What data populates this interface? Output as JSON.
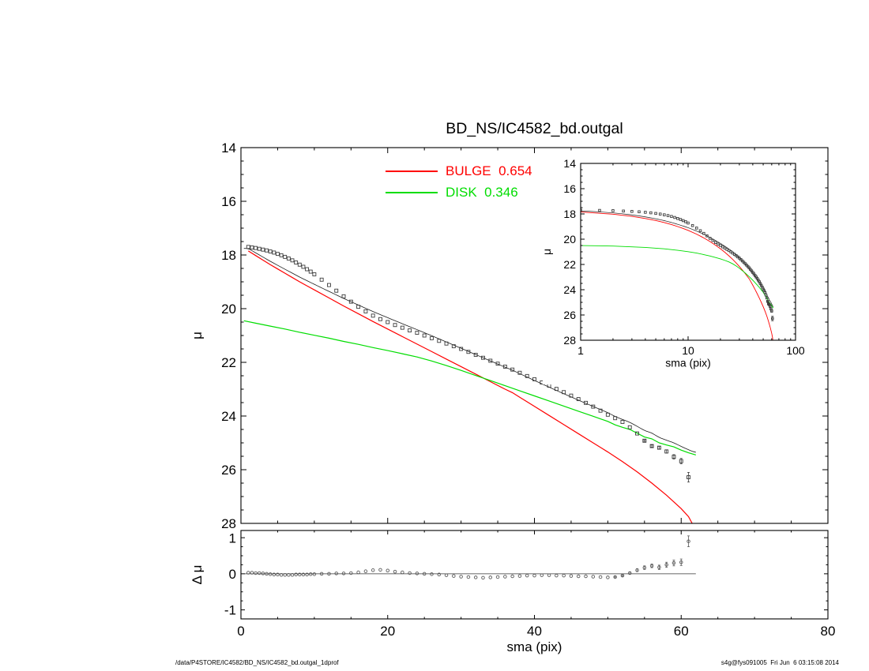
{
  "title": "BD_NS/IC4582_bd.outgal",
  "legend": [
    {
      "label": "BULGE  0.654",
      "color": "#ff0000"
    },
    {
      "label": "DISK  0.346",
      "color": "#00dd00"
    }
  ],
  "footer": {
    "left": "/data/P4STORE/IC4582/BD_NS/IC4582_bd.outgal_1dprof",
    "right": "s4g@fys091005  Fri Jun  6 03:15:08 2014"
  },
  "colors": {
    "bulge": "#ff0000",
    "disk": "#00dd00",
    "data": "#3c3c3c",
    "model": "#1c1c1c",
    "residual": "#5a5a5a",
    "axis": "#000000"
  },
  "chart_data": [
    {
      "id": "main",
      "type": "line",
      "y_down": true,
      "show_model_total": true,
      "xlim": [
        0,
        80
      ],
      "ylim": [
        14,
        28
      ],
      "xticks": [
        0,
        20,
        40,
        60,
        80
      ],
      "yticks": [
        14,
        16,
        18,
        20,
        22,
        24,
        26,
        28
      ],
      "show_x_tick_labels": false,
      "xlabel": "",
      "ylabel": "μ",
      "series": [
        {
          "name": "observed",
          "kind": "scatter",
          "marker": "square",
          "color": "#3c3c3c",
          "x": [
            1,
            1.5,
            2,
            2.5,
            3,
            3.5,
            4,
            4.5,
            5,
            5.5,
            6,
            6.5,
            7,
            7.5,
            8,
            8.5,
            9,
            9.5,
            10,
            11,
            12,
            13,
            14,
            15,
            16,
            17,
            18,
            19,
            20,
            21,
            22,
            23,
            24,
            25,
            26,
            27,
            28,
            29,
            30,
            31,
            32,
            33,
            34,
            35,
            36,
            37,
            38,
            39,
            40,
            41,
            42,
            43,
            44,
            45,
            46,
            47,
            48,
            49,
            50,
            51,
            52,
            53,
            54,
            55,
            56,
            57,
            58,
            59,
            60,
            61
          ],
          "y": [
            17.7,
            17.72,
            17.74,
            17.77,
            17.8,
            17.83,
            17.87,
            17.91,
            17.96,
            18.01,
            18.07,
            18.13,
            18.2,
            18.28,
            18.36,
            18.44,
            18.53,
            18.62,
            18.72,
            18.92,
            19.12,
            19.33,
            19.54,
            19.74,
            19.93,
            20.1,
            20.26,
            20.39,
            20.5,
            20.61,
            20.71,
            20.81,
            20.9,
            21.0,
            21.1,
            21.2,
            21.3,
            21.4,
            21.5,
            21.61,
            21.72,
            21.83,
            21.94,
            22.05,
            22.16,
            22.27,
            22.39,
            22.51,
            22.63,
            22.75,
            22.87,
            22.99,
            23.11,
            23.24,
            23.37,
            23.51,
            23.65,
            23.8,
            23.95,
            24.08,
            24.22,
            24.42,
            24.65,
            24.92,
            25.12,
            25.18,
            25.32,
            25.52,
            25.68,
            26.28
          ],
          "err": [
            0,
            0,
            0,
            0,
            0,
            0,
            0,
            0,
            0,
            0,
            0,
            0,
            0,
            0,
            0,
            0,
            0,
            0,
            0,
            0,
            0,
            0,
            0,
            0,
            0,
            0,
            0,
            0,
            0,
            0,
            0,
            0,
            0,
            0,
            0,
            0,
            0,
            0,
            0,
            0,
            0,
            0,
            0,
            0,
            0,
            0,
            0,
            0,
            0,
            0,
            0,
            0,
            0,
            0,
            0,
            0,
            0,
            0,
            0,
            0,
            0,
            0,
            0,
            0.03,
            0.04,
            0.05,
            0.06,
            0.08,
            0.1,
            0.18
          ]
        },
        {
          "name": "bulge",
          "kind": "line",
          "color": "#ff0000",
          "x": [
            1,
            2,
            3,
            4,
            5,
            6,
            7,
            8,
            9,
            10,
            12,
            14,
            16,
            18,
            20,
            22,
            24,
            26,
            28,
            30,
            32,
            34,
            36,
            37,
            38,
            40,
            42,
            44,
            46,
            48,
            50,
            52,
            54,
            56,
            58,
            60,
            61,
            61.5
          ],
          "y": [
            17.85,
            18.02,
            18.19,
            18.36,
            18.52,
            18.68,
            18.84,
            19.0,
            19.15,
            19.3,
            19.6,
            19.9,
            20.19,
            20.48,
            20.76,
            21.04,
            21.32,
            21.6,
            21.88,
            22.16,
            22.44,
            22.72,
            23.0,
            23.13,
            23.3,
            23.64,
            23.98,
            24.32,
            24.66,
            25.0,
            25.34,
            25.7,
            26.08,
            26.5,
            26.95,
            27.45,
            27.75,
            28.0
          ]
        },
        {
          "name": "disk",
          "kind": "line",
          "color": "#00dd00",
          "x": [
            0.4,
            2,
            4,
            6,
            8,
            10,
            12,
            14,
            16,
            18,
            20,
            22,
            24,
            26,
            28,
            30,
            32,
            34,
            36,
            38,
            40,
            42,
            44,
            46,
            48,
            50,
            51,
            52,
            53,
            54,
            55,
            56,
            57,
            58,
            59,
            60,
            61,
            62
          ],
          "y": [
            20.45,
            20.54,
            20.65,
            20.76,
            20.88,
            20.99,
            21.1,
            21.22,
            21.33,
            21.45,
            21.56,
            21.68,
            21.8,
            21.95,
            22.12,
            22.3,
            22.49,
            22.68,
            22.87,
            23.06,
            23.25,
            23.44,
            23.63,
            23.82,
            24.01,
            24.2,
            24.33,
            24.42,
            24.5,
            24.64,
            24.78,
            24.85,
            25.0,
            25.08,
            25.15,
            25.27,
            25.37,
            25.45
          ]
        }
      ]
    },
    {
      "id": "inset",
      "type": "line",
      "y_down": true,
      "xlog": true,
      "show_model_total": true,
      "xlim": [
        1,
        100
      ],
      "ylim": [
        14,
        28
      ],
      "xticks": [
        1,
        10,
        100
      ],
      "yticks": [
        14,
        16,
        18,
        20,
        22,
        24,
        26,
        28
      ],
      "xlabel": "sma (pix)",
      "ylabel": "μ",
      "series_from": "main"
    },
    {
      "id": "residual",
      "type": "scatter",
      "y_down": false,
      "xlim": [
        0,
        80
      ],
      "ylim": [
        -1.25,
        1.2
      ],
      "xticks": [
        0,
        20,
        40,
        60,
        80
      ],
      "yticks": [
        -1,
        0,
        1
      ],
      "xlabel": "sma (pix)",
      "ylabel": "Δ μ",
      "zero_line": true,
      "series": [
        {
          "name": "residual",
          "kind": "scatter",
          "marker": "circle",
          "color": "#5a5a5a",
          "x": [
            1,
            1.5,
            2,
            2.5,
            3,
            3.5,
            4,
            4.5,
            5,
            5.5,
            6,
            6.5,
            7,
            7.5,
            8,
            8.5,
            9,
            9.5,
            10,
            11,
            12,
            13,
            14,
            15,
            16,
            17,
            18,
            19,
            20,
            21,
            22,
            23,
            24,
            25,
            26,
            27,
            28,
            29,
            30,
            31,
            32,
            33,
            34,
            35,
            36,
            37,
            38,
            39,
            40,
            41,
            42,
            43,
            44,
            45,
            46,
            47,
            48,
            49,
            50,
            51,
            52,
            53,
            54,
            55,
            56,
            57,
            58,
            59,
            60,
            61
          ],
          "y": [
            0.03,
            0.03,
            0.02,
            0.02,
            0.01,
            0.0,
            -0.01,
            -0.02,
            -0.02,
            -0.03,
            -0.03,
            -0.03,
            -0.03,
            -0.02,
            -0.02,
            -0.02,
            -0.02,
            -0.01,
            -0.01,
            0.0,
            0.0,
            0.01,
            0.01,
            0.02,
            0.04,
            0.07,
            0.1,
            0.11,
            0.09,
            0.06,
            0.04,
            0.02,
            0.01,
            0.0,
            -0.01,
            -0.02,
            -0.04,
            -0.06,
            -0.08,
            -0.09,
            -0.1,
            -0.11,
            -0.1,
            -0.09,
            -0.08,
            -0.07,
            -0.06,
            -0.05,
            -0.05,
            -0.04,
            -0.04,
            -0.05,
            -0.05,
            -0.06,
            -0.07,
            -0.07,
            -0.08,
            -0.09,
            -0.1,
            -0.09,
            -0.05,
            0.02,
            0.1,
            0.17,
            0.22,
            0.18,
            0.25,
            0.3,
            0.32,
            0.9
          ],
          "err": [
            0,
            0,
            0,
            0,
            0,
            0,
            0,
            0,
            0,
            0,
            0,
            0,
            0,
            0,
            0,
            0,
            0,
            0,
            0,
            0,
            0,
            0,
            0,
            0,
            0,
            0,
            0,
            0,
            0,
            0,
            0,
            0,
            0,
            0,
            0,
            0,
            0,
            0,
            0,
            0,
            0,
            0,
            0,
            0,
            0,
            0,
            0,
            0,
            0,
            0,
            0,
            0,
            0,
            0,
            0,
            0,
            0,
            0,
            0,
            0.02,
            0.02,
            0.03,
            0.04,
            0.05,
            0.05,
            0.06,
            0.07,
            0.08,
            0.09,
            0.15
          ]
        }
      ]
    }
  ]
}
